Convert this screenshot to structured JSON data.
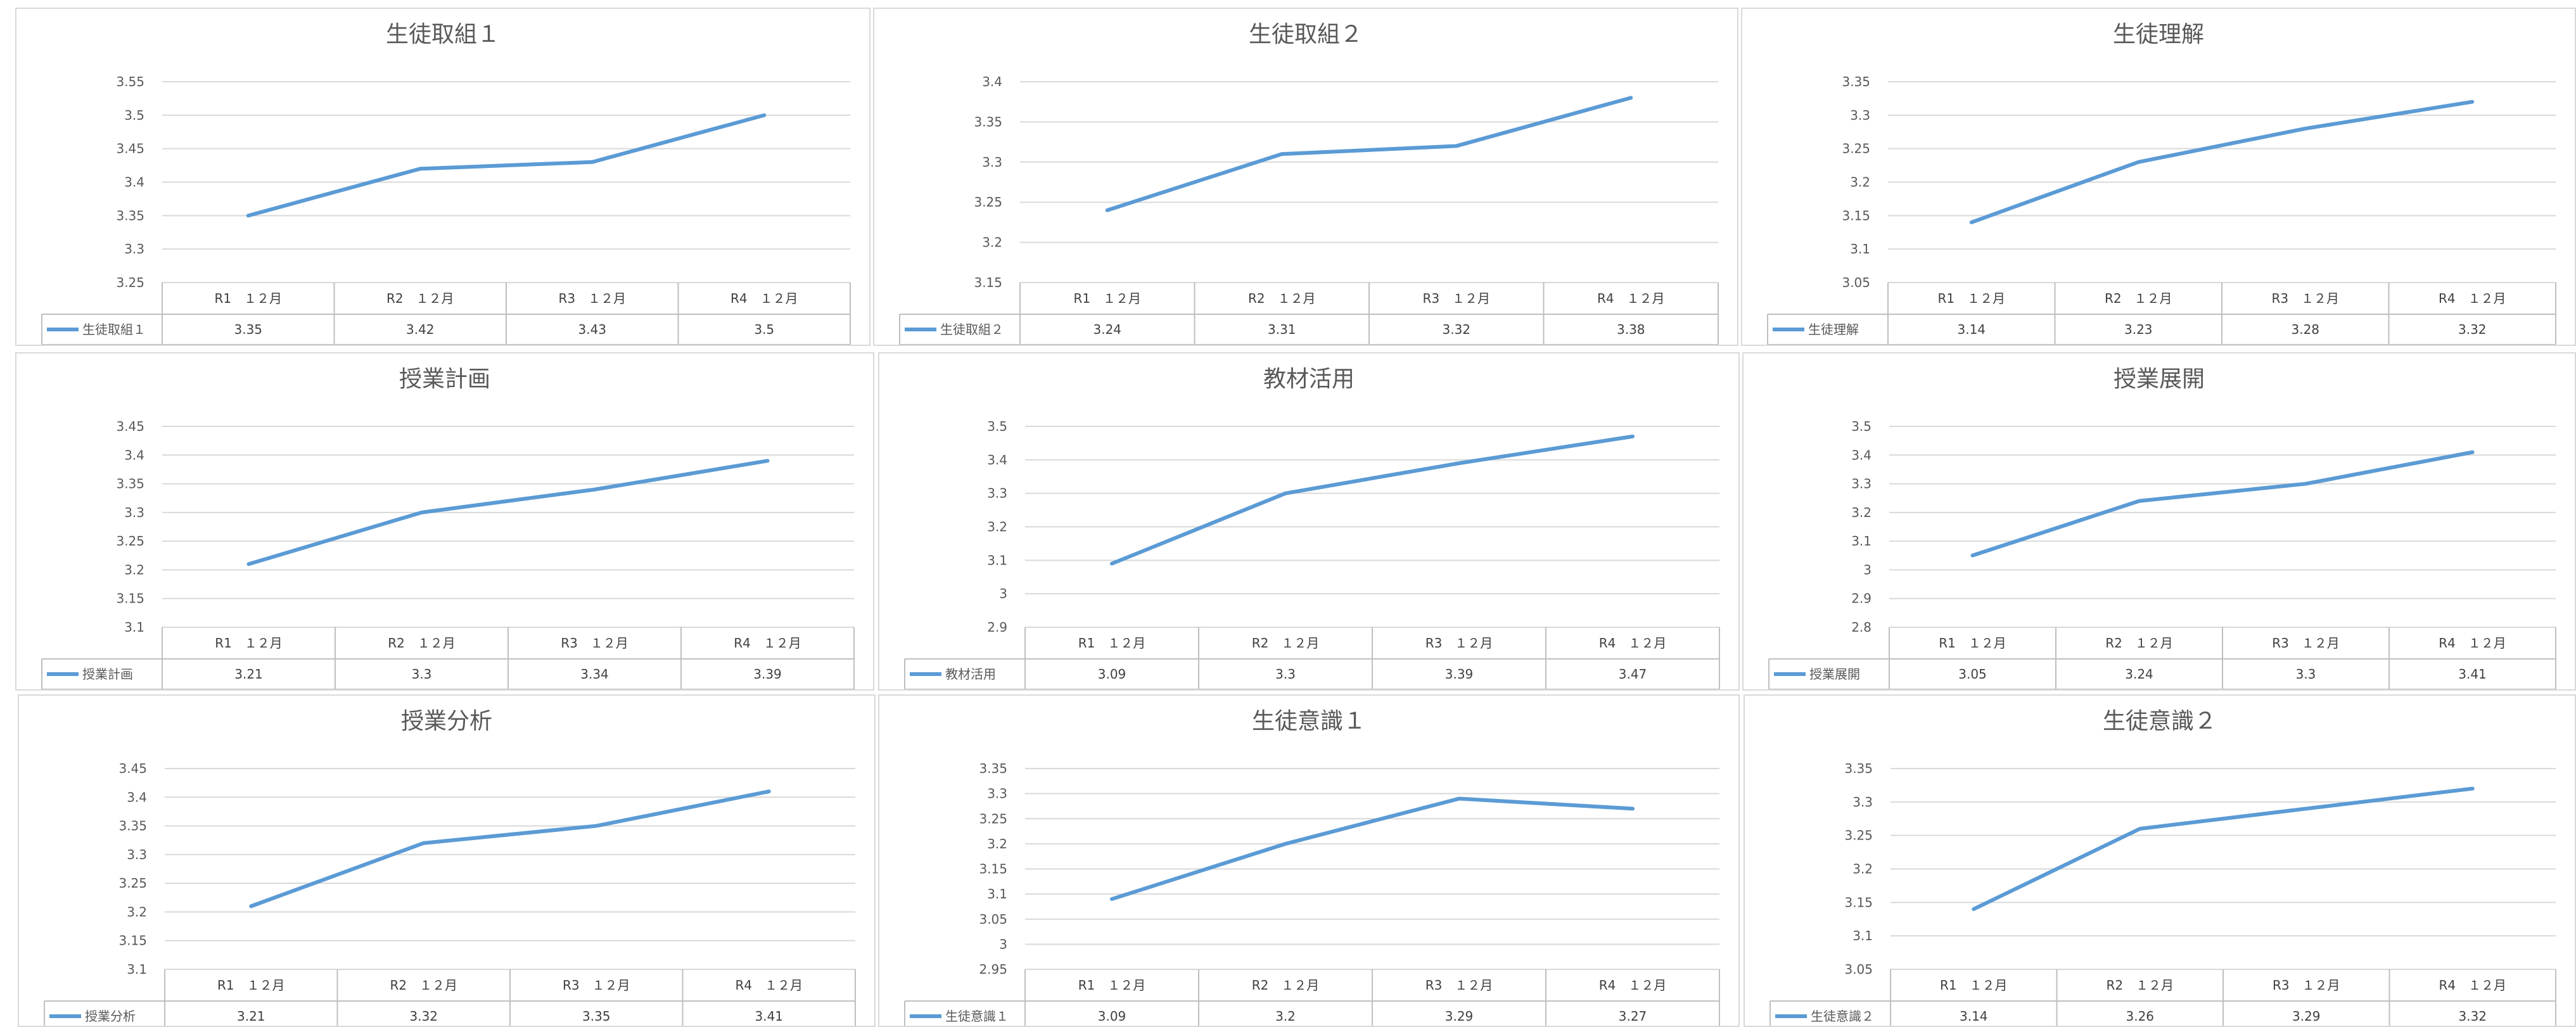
{
  "chart_data": [
    {
      "type": "line",
      "title": "生徒取組１",
      "categories": [
        "R1　１２月",
        "R2　１２月",
        "R3　１２月",
        "R4　１２月"
      ],
      "series": [
        {
          "name": "生徒取組１",
          "values": [
            3.35,
            3.42,
            3.43,
            3.5
          ]
        }
      ],
      "ylim": [
        3.25,
        3.55
      ],
      "yticks": [
        "3.25",
        "3.3",
        "3.35",
        "3.4",
        "3.45",
        "3.5",
        "3.55"
      ],
      "grid": true,
      "legend": "data-table",
      "color": "#5b9bd5"
    },
    {
      "type": "line",
      "title": "生徒取組２",
      "categories": [
        "R1　１２月",
        "R2　１２月",
        "R3　１２月",
        "R4　１２月"
      ],
      "series": [
        {
          "name": "生徒取組２",
          "values": [
            3.24,
            3.31,
            3.32,
            3.38
          ]
        }
      ],
      "ylim": [
        3.15,
        3.4
      ],
      "yticks": [
        "3.15",
        "3.2",
        "3.25",
        "3.3",
        "3.35",
        "3.4"
      ],
      "grid": true,
      "legend": "data-table",
      "color": "#5b9bd5"
    },
    {
      "type": "line",
      "title": "生徒理解",
      "categories": [
        "R1　１２月",
        "R2　１２月",
        "R3　１２月",
        "R4　１２月"
      ],
      "series": [
        {
          "name": "生徒理解",
          "values": [
            3.14,
            3.23,
            3.28,
            3.32
          ]
        }
      ],
      "ylim": [
        3.05,
        3.35
      ],
      "yticks": [
        "3.05",
        "3.1",
        "3.15",
        "3.2",
        "3.25",
        "3.3",
        "3.35"
      ],
      "grid": true,
      "legend": "data-table",
      "color": "#5b9bd5"
    },
    {
      "type": "line",
      "title": "授業計画",
      "categories": [
        "R1　１２月",
        "R2　１２月",
        "R3　１２月",
        "R4　１２月"
      ],
      "series": [
        {
          "name": "授業計画",
          "values": [
            3.21,
            3.3,
            3.34,
            3.39
          ]
        }
      ],
      "ylim": [
        3.1,
        3.45
      ],
      "yticks": [
        "3.1",
        "3.15",
        "3.2",
        "3.25",
        "3.3",
        "3.35",
        "3.4",
        "3.45"
      ],
      "grid": true,
      "legend": "data-table",
      "color": "#5b9bd5"
    },
    {
      "type": "line",
      "title": "教材活用",
      "categories": [
        "R1　１２月",
        "R2　１２月",
        "R3　１２月",
        "R4　１２月"
      ],
      "series": [
        {
          "name": "教材活用",
          "values": [
            3.09,
            3.3,
            3.39,
            3.47
          ]
        }
      ],
      "ylim": [
        2.9,
        3.5
      ],
      "yticks": [
        "2.9",
        "3",
        "3.1",
        "3.2",
        "3.3",
        "3.4",
        "3.5"
      ],
      "grid": true,
      "legend": "data-table",
      "color": "#5b9bd5"
    },
    {
      "type": "line",
      "title": "授業展開",
      "categories": [
        "R1　１２月",
        "R2　１２月",
        "R3　１２月",
        "R4　１２月"
      ],
      "series": [
        {
          "name": "授業展開",
          "values": [
            3.05,
            3.24,
            3.3,
            3.41
          ]
        }
      ],
      "ylim": [
        2.8,
        3.5
      ],
      "yticks": [
        "2.8",
        "2.9",
        "3",
        "3.1",
        "3.2",
        "3.3",
        "3.4",
        "3.5"
      ],
      "grid": true,
      "legend": "data-table",
      "color": "#5b9bd5"
    },
    {
      "type": "line",
      "title": "授業分析",
      "categories": [
        "R1　１２月",
        "R2　１２月",
        "R3　１２月",
        "R4　１２月"
      ],
      "series": [
        {
          "name": "授業分析",
          "values": [
            3.21,
            3.32,
            3.35,
            3.41
          ]
        }
      ],
      "ylim": [
        3.1,
        3.45
      ],
      "yticks": [
        "3.1",
        "3.15",
        "3.2",
        "3.25",
        "3.3",
        "3.35",
        "3.4",
        "3.45"
      ],
      "grid": true,
      "legend": "data-table",
      "color": "#5b9bd5"
    },
    {
      "type": "line",
      "title": "生徒意識１",
      "categories": [
        "R1　１２月",
        "R2　１２月",
        "R3　１２月",
        "R4　１２月"
      ],
      "series": [
        {
          "name": "生徒意識１",
          "values": [
            3.09,
            3.2,
            3.29,
            3.27
          ]
        }
      ],
      "ylim": [
        2.95,
        3.35
      ],
      "yticks": [
        "2.95",
        "3",
        "3.05",
        "3.1",
        "3.15",
        "3.2",
        "3.25",
        "3.3",
        "3.35"
      ],
      "grid": true,
      "legend": "data-table",
      "color": "#5b9bd5"
    },
    {
      "type": "line",
      "title": "生徒意識２",
      "categories": [
        "R1　１２月",
        "R2　１２月",
        "R3　１２月",
        "R4　１２月"
      ],
      "series": [
        {
          "name": "生徒意識２",
          "values": [
            3.14,
            3.26,
            3.29,
            3.32
          ]
        }
      ],
      "ylim": [
        3.05,
        3.35
      ],
      "yticks": [
        "3.05",
        "3.1",
        "3.15",
        "3.2",
        "3.25",
        "3.3",
        "3.35"
      ],
      "grid": true,
      "legend": "data-table",
      "color": "#5b9bd5"
    }
  ]
}
